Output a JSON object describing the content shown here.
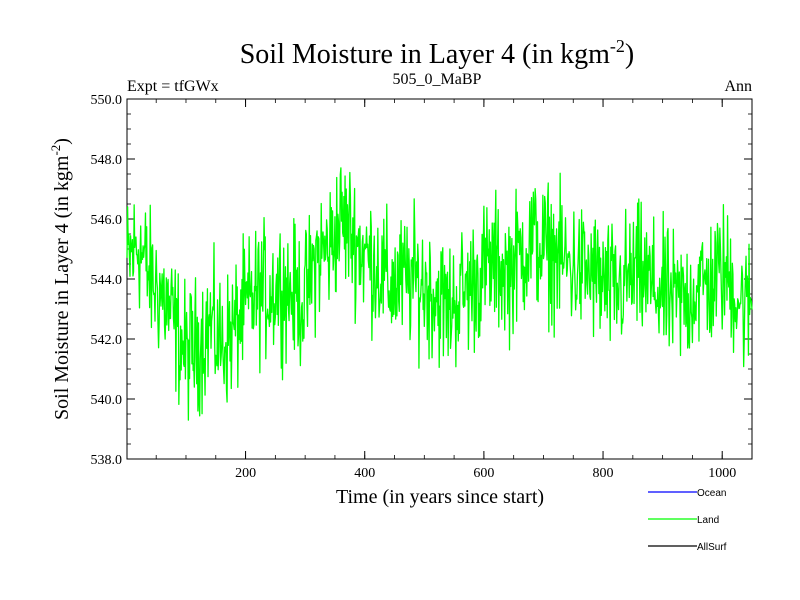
{
  "chart_data": {
    "type": "line",
    "title": "Soil Moisture in Layer 4 (in kgm",
    "title_sup": "-2",
    "title_end": ")",
    "left_label": "Expt = tfGWx",
    "center_label": "505_0_MaBP",
    "right_label": "Ann",
    "xlabel": "Time (in years since start)",
    "ylabel": "Soil Moisture in Layer 4 (in kgm",
    "ylabel_sup": "-2",
    "ylabel_end": ")",
    "xlim": [
      1,
      1050
    ],
    "ylim": [
      538.0,
      550.0
    ],
    "x_ticks": [
      "200",
      "400",
      "600",
      "800",
      "1000"
    ],
    "x_tick_values": [
      200,
      400,
      600,
      800,
      1000
    ],
    "y_ticks": [
      "538.0",
      "540.0",
      "542.0",
      "544.0",
      "546.0",
      "548.0",
      "550.0"
    ],
    "y_tick_values": [
      538,
      540,
      542,
      544,
      546,
      548,
      550
    ],
    "series": [
      {
        "name": "Ocean",
        "color": "#0000ff",
        "x": [],
        "values": []
      },
      {
        "name": "Land",
        "color": "#00ff00",
        "x": [
          1,
          20,
          40,
          60,
          80,
          100,
          120,
          140,
          160,
          180,
          200,
          220,
          240,
          260,
          280,
          300,
          320,
          340,
          360,
          380,
          400,
          420,
          440,
          460,
          480,
          500,
          520,
          540,
          560,
          580,
          600,
          620,
          640,
          660,
          680,
          700,
          720,
          740,
          760,
          780,
          800,
          820,
          840,
          860,
          880,
          900,
          920,
          940,
          960,
          980,
          1000,
          1020,
          1040,
          1050
        ],
        "values": [
          544.5,
          545.2,
          544.0,
          543.5,
          542.5,
          541.5,
          541.8,
          542.5,
          541.8,
          542.3,
          543.0,
          543.5,
          543.6,
          543.8,
          543.5,
          543.3,
          544.8,
          545.0,
          546.0,
          545.5,
          544.8,
          544.5,
          543.8,
          543.9,
          544.0,
          543.8,
          543.5,
          543.0,
          543.5,
          543.8,
          544.3,
          544.5,
          544.2,
          544.8,
          545.3,
          545.0,
          544.8,
          544.5,
          544.3,
          544.2,
          543.8,
          543.5,
          544.0,
          544.2,
          543.8,
          543.5,
          543.2,
          543.3,
          543.8,
          543.8,
          544.3,
          543.7,
          543.0,
          543.3
        ]
      },
      {
        "name": "AllSurf",
        "color": "#000000",
        "x": [],
        "values": []
      }
    ],
    "legend_position": "bottom-right",
    "grid": false
  }
}
